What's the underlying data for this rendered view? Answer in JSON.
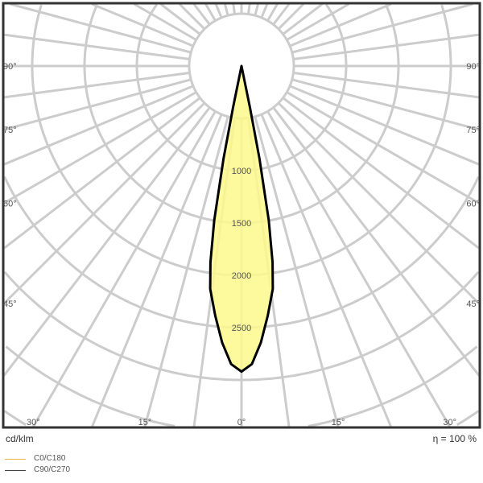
{
  "chart_data": {
    "type": "polar",
    "unit_label": "cd/klm",
    "efficiency_label": "η = 100 %",
    "radial_ticks": [
      1000,
      1500,
      2000,
      2500
    ],
    "radial_grid_step": 500,
    "radial_max": 4500,
    "angle_ticks": [
      "90°",
      "75°",
      "60°",
      "45°",
      "30°",
      "15°",
      "0°"
    ],
    "angle_tick_values": [
      90,
      75,
      60,
      45,
      30,
      15,
      0
    ],
    "angle_grid_step_deg": 7.5,
    "grid": true,
    "fill_color": "#fdf98c",
    "curve_color": "#000000",
    "grid_color": "#cccccc",
    "legend": [
      {
        "name": "C0/C180",
        "color": "#f2b347"
      },
      {
        "name": "C90/C270",
        "color": "#444444"
      }
    ],
    "series": [
      {
        "angles_deg": [
          0,
          2,
          4,
          6,
          8,
          9,
          10,
          11,
          11.5,
          12
        ],
        "values": [
          2920,
          2850,
          2650,
          2400,
          2150,
          1900,
          1500,
          900,
          400,
          0
        ]
      }
    ]
  }
}
